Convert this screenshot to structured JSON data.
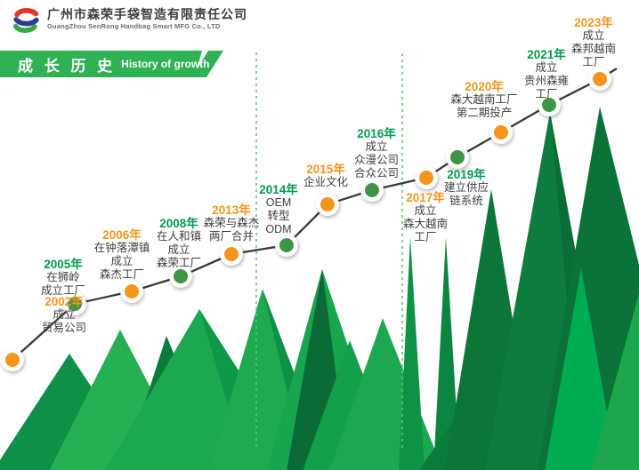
{
  "header": {
    "logo": "senrong-s-logo",
    "company_name_zh": "广州市森荣手袋智造有限责任公司",
    "company_name_en": "GuangZhou SenRong Handbag Smart MFG Co., LTD"
  },
  "banner": {
    "title_zh": "成 长 历 史",
    "title_en": "History of growth"
  },
  "palette": {
    "accent_orange": "#F7941D",
    "accent_green": "#009C4B",
    "dot_green": "#3E9547",
    "dot_orange": "#F7941D",
    "timeline_line": "#3B3B3B",
    "banner_green": "#2FB254",
    "dash_green": "#66C46F",
    "text_dark": "#3E3E3E",
    "logo_red": "#E2342B",
    "logo_blue": "#2C3A8F",
    "logo_green": "#33AA47",
    "mountain_greens": [
      "#0E9046",
      "#27AF53",
      "#0B7A3D",
      "#1BA84F",
      "#0F9848",
      "#1FAA50",
      "#17A54D",
      "#0A6B37",
      "#12A04B",
      "#1CA750",
      "#0E9246",
      "#0B8540",
      "#0C753A",
      "#0E7C3E",
      "#0A6C36",
      "#0B7239",
      "#00AC52",
      "#1CA74F"
    ]
  },
  "timeline": {
    "milestones": [
      {
        "year": "2002年",
        "accent": "orange",
        "lines": [
          "成立",
          "贸易公司"
        ]
      },
      {
        "year": "2005年",
        "accent": "green",
        "lines": [
          "在狮岭",
          "成立工厂"
        ]
      },
      {
        "year": "2006年",
        "accent": "orange",
        "lines": [
          "在钟落潭镇",
          "成立",
          "森杰工厂"
        ]
      },
      {
        "year": "2008年",
        "accent": "green",
        "lines": [
          "在人和镇",
          "成立",
          "森荣工厂"
        ]
      },
      {
        "year": "2013年",
        "accent": "orange",
        "lines": [
          "森荣与森杰",
          "两厂合并"
        ]
      },
      {
        "year": "2014年",
        "accent": "green",
        "lines": [
          "OEM",
          "转型",
          "ODM"
        ]
      },
      {
        "year": "2015年",
        "accent": "orange",
        "lines": [
          "企业文化"
        ]
      },
      {
        "year": "2016年",
        "accent": "green",
        "lines": [
          "成立",
          "众漫公司",
          "合众公司"
        ]
      },
      {
        "year": "2017年",
        "accent": "orange",
        "lines": [
          "成立",
          "森大越南",
          "工厂"
        ]
      },
      {
        "year": "2019年",
        "accent": "green",
        "lines": [
          "建立供应",
          "链系统"
        ]
      },
      {
        "year": "2020年",
        "accent": "orange",
        "lines": [
          "森大越南工厂",
          "第二期投产"
        ]
      },
      {
        "year": "2021年",
        "accent": "green",
        "lines": [
          "成立",
          "贵州森雍",
          "工厂"
        ]
      },
      {
        "year": "2023年",
        "accent": "orange",
        "lines": [
          "成立",
          "森邦越南",
          "工厂"
        ]
      }
    ]
  }
}
